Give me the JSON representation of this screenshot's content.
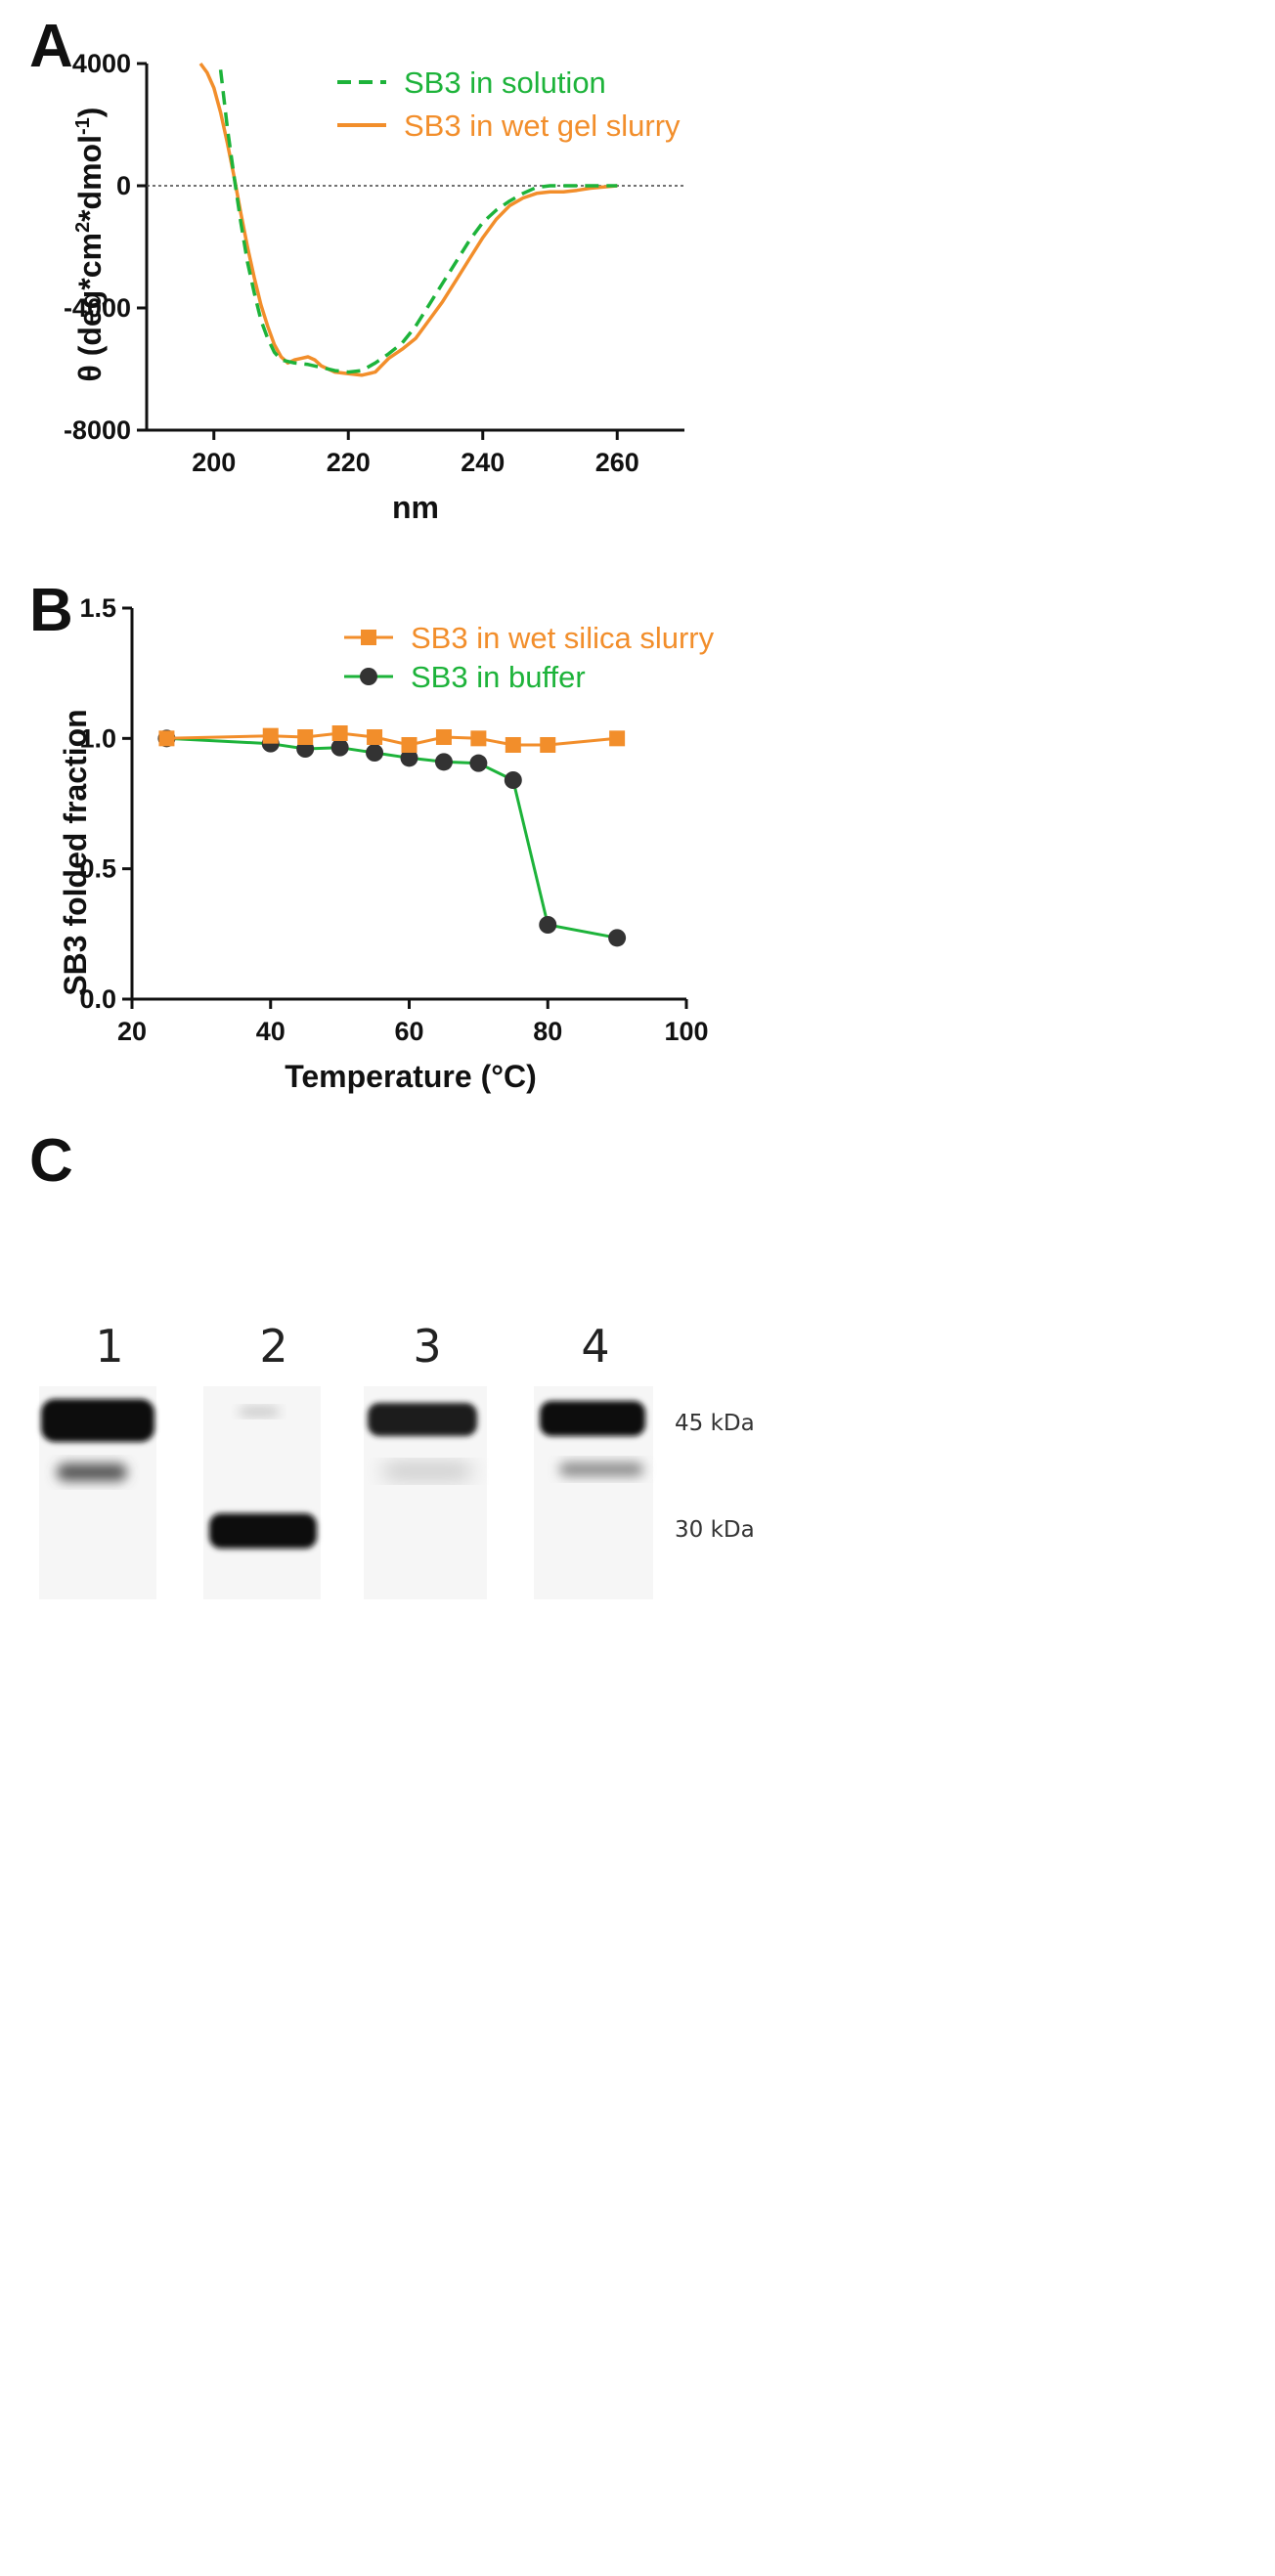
{
  "panels": {
    "a": "A",
    "b": "B",
    "c": "C"
  },
  "chart_data": [
    {
      "id": "panel-a",
      "type": "line",
      "title": "",
      "xlabel": "nm",
      "ylabel": "θ (deg*cm²*dmol⁻¹)",
      "ylabel_parts": {
        "theta": "θ",
        "open": " (deg*cm",
        "sup1": "2",
        "mid": "*dmol",
        "sup2": "-1",
        "close": ")"
      },
      "xlim": [
        190,
        270
      ],
      "ylim": [
        -8000,
        4000
      ],
      "x_ticks": [
        200,
        220,
        240,
        260
      ],
      "y_ticks": [
        4000,
        0,
        -4000,
        -8000
      ],
      "x_tick_labels": [
        "200",
        "220",
        "240",
        "260"
      ],
      "y_tick_labels": [
        "4000",
        "0",
        "-4000",
        "-8000"
      ],
      "reference_line": 0,
      "series": [
        {
          "name": "SB3 in solution",
          "color": "#1db33a",
          "dashed": true,
          "x": [
            201,
            202,
            203,
            204,
            205,
            206,
            207,
            208,
            209,
            210,
            212,
            214,
            216,
            218,
            220,
            222,
            224,
            226,
            228,
            230,
            232,
            234,
            236,
            238,
            240,
            242,
            244,
            246,
            248,
            250,
            252,
            254,
            256,
            258,
            260
          ],
          "y": [
            3800,
            1900,
            300,
            -1200,
            -2500,
            -3500,
            -4400,
            -5000,
            -5450,
            -5700,
            -5800,
            -5850,
            -5950,
            -6050,
            -6100,
            -6050,
            -5800,
            -5500,
            -5150,
            -4600,
            -3900,
            -3200,
            -2500,
            -1800,
            -1200,
            -800,
            -500,
            -250,
            -50,
            0,
            0,
            0,
            0,
            0,
            0
          ]
        },
        {
          "name": "SB3 in wet gel slurry",
          "color": "#f28e2b",
          "dashed": false,
          "x": [
            198,
            199,
            200,
            201,
            202,
            203,
            204,
            205,
            206,
            207,
            208,
            209,
            210,
            211,
            212,
            213,
            214,
            215,
            216,
            218,
            220,
            222,
            224,
            226,
            228,
            230,
            232,
            234,
            236,
            238,
            240,
            242,
            244,
            246,
            248,
            250,
            252,
            254,
            256,
            258,
            260
          ],
          "y": [
            4000,
            3700,
            3200,
            2400,
            1400,
            300,
            -900,
            -2000,
            -3000,
            -3900,
            -4600,
            -5200,
            -5600,
            -5800,
            -5700,
            -5650,
            -5600,
            -5700,
            -5900,
            -6100,
            -6150,
            -6200,
            -6100,
            -5650,
            -5350,
            -5000,
            -4400,
            -3800,
            -3100,
            -2400,
            -1700,
            -1100,
            -650,
            -400,
            -250,
            -200,
            -200,
            -150,
            -80,
            -40,
            0
          ]
        }
      ],
      "legend": [
        "SB3 in solution",
        "SB3 in wet gel slurry"
      ],
      "legend_position": "top-right"
    },
    {
      "id": "panel-b",
      "type": "line",
      "title": "",
      "xlabel": "Temperature (°C)",
      "ylabel": "SB3 folded fraction",
      "xlim": [
        20,
        100
      ],
      "ylim": [
        0,
        1.5
      ],
      "x_ticks": [
        20,
        40,
        60,
        80,
        100
      ],
      "y_ticks": [
        0,
        0.5,
        1.0,
        1.5
      ],
      "x_tick_labels": [
        "20",
        "40",
        "60",
        "80",
        "100"
      ],
      "y_tick_labels": [
        "0.0",
        "0.5",
        "1.0",
        "1.5"
      ],
      "series": [
        {
          "name": "SB3 in wet silica slurry",
          "color": "#f28e2b",
          "marker": "square",
          "x": [
            25,
            40,
            45,
            50,
            55,
            60,
            65,
            70,
            75,
            80,
            90
          ],
          "y": [
            1.0,
            1.01,
            1.005,
            1.02,
            1.005,
            0.975,
            1.005,
            1.0,
            0.975,
            0.975,
            1.0
          ]
        },
        {
          "name": "SB3 in buffer",
          "color": "#1db33a",
          "marker": "circle",
          "marker_color": "#333333",
          "x": [
            25,
            40,
            45,
            50,
            55,
            60,
            65,
            70,
            75,
            80,
            90
          ],
          "y": [
            1.0,
            0.98,
            0.96,
            0.965,
            0.945,
            0.925,
            0.91,
            0.905,
            0.84,
            0.285,
            0.235
          ]
        }
      ],
      "legend": [
        "SB3 in wet silica slurry",
        "SB3 in buffer"
      ],
      "legend_position": "top-right"
    }
  ],
  "gel": {
    "lanes": [
      "1",
      "2",
      "3",
      "4"
    ],
    "markers": [
      "45 kDa",
      "30 kDa"
    ]
  }
}
